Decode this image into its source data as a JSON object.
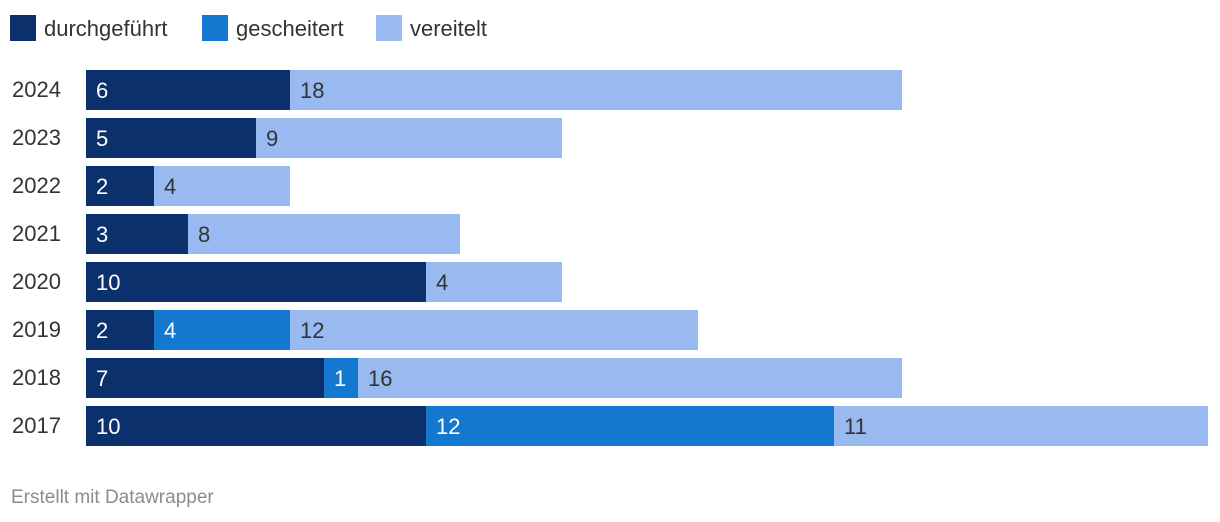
{
  "chart_data": {
    "type": "bar",
    "orientation": "horizontal",
    "stacked": true,
    "categories": [
      "2024",
      "2023",
      "2022",
      "2021",
      "2020",
      "2019",
      "2018",
      "2017"
    ],
    "series": [
      {
        "name": "durchgeführt",
        "color": "#0b306b",
        "label_color": "#ffffff",
        "values": [
          6,
          5,
          2,
          3,
          10,
          2,
          7,
          10
        ]
      },
      {
        "name": "gescheitert",
        "color": "#1578cf",
        "label_color": "#ffffff",
        "values": [
          0,
          0,
          0,
          0,
          0,
          4,
          1,
          12
        ]
      },
      {
        "name": "vereitelt",
        "color": "#99b9f1",
        "label_color": "#333333",
        "values": [
          18,
          9,
          4,
          8,
          4,
          12,
          16,
          11
        ]
      }
    ],
    "xlim": [
      0,
      33
    ],
    "legend_position": "top-left",
    "grid": false
  },
  "footer": {
    "credit": "Erstellt mit Datawrapper"
  }
}
